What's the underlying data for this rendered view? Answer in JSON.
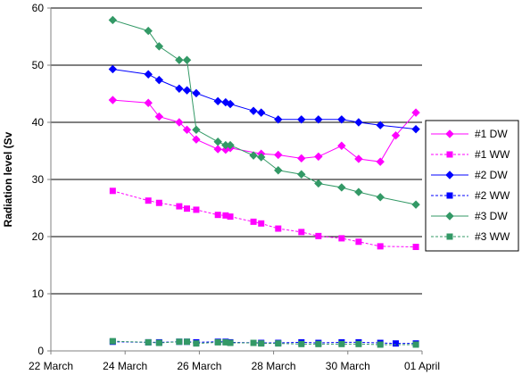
{
  "chart_data": {
    "type": "line",
    "title": "",
    "xlabel": "",
    "ylabel": "Radiation level (Sv",
    "ylim": [
      0,
      60
    ],
    "yticks": [
      0,
      10,
      20,
      30,
      40,
      50,
      60
    ],
    "xlim": [
      "2011-03-22",
      "2011-04-01"
    ],
    "xticks": [
      {
        "date": "2011-03-22",
        "label": "22 March"
      },
      {
        "date": "2011-03-24",
        "label": "24 March"
      },
      {
        "date": "2011-03-26",
        "label": "26 March"
      },
      {
        "date": "2011-03-28",
        "label": "28 March"
      },
      {
        "date": "2011-03-30",
        "label": "30 March"
      },
      {
        "date": "2011-04-01",
        "label": "01 April"
      }
    ],
    "grid": "horizontal",
    "legend_position": "right",
    "series": [
      {
        "name": "#1 DW",
        "color": "#ff00ff",
        "dash": false,
        "marker": "diamond",
        "points": [
          [
            "2011-03-23 16:00",
            43.9
          ],
          [
            "2011-03-24 15:00",
            43.4
          ],
          [
            "2011-03-24 22:00",
            41.0
          ],
          [
            "2011-03-25 11:00",
            40.0
          ],
          [
            "2011-03-25 16:00",
            38.7
          ],
          [
            "2011-03-25 22:00",
            37.0
          ],
          [
            "2011-03-26 12:00",
            35.3
          ],
          [
            "2011-03-26 17:00",
            35.2
          ],
          [
            "2011-03-26 20:00",
            35.5
          ],
          [
            "2011-03-27 16:00",
            34.5
          ],
          [
            "2011-03-28 03:00",
            34.3
          ],
          [
            "2011-03-28 18:00",
            33.7
          ],
          [
            "2011-03-29 05:00",
            34.0
          ],
          [
            "2011-03-29 20:00",
            35.9
          ],
          [
            "2011-03-30 07:00",
            33.6
          ],
          [
            "2011-03-30 21:00",
            33.1
          ],
          [
            "2011-03-31 07:00",
            37.7
          ],
          [
            "2011-03-31 20:00",
            41.7
          ]
        ]
      },
      {
        "name": "#1 WW",
        "color": "#ff00ff",
        "dash": true,
        "marker": "square",
        "points": [
          [
            "2011-03-23 16:00",
            28.0
          ],
          [
            "2011-03-24 15:00",
            26.3
          ],
          [
            "2011-03-24 22:00",
            25.9
          ],
          [
            "2011-03-25 11:00",
            25.3
          ],
          [
            "2011-03-25 16:00",
            24.9
          ],
          [
            "2011-03-25 22:00",
            24.7
          ],
          [
            "2011-03-26 12:00",
            23.8
          ],
          [
            "2011-03-26 17:00",
            23.7
          ],
          [
            "2011-03-26 20:00",
            23.5
          ],
          [
            "2011-03-27 11:00",
            22.6
          ],
          [
            "2011-03-27 16:00",
            22.3
          ],
          [
            "2011-03-28 03:00",
            21.4
          ],
          [
            "2011-03-28 18:00",
            20.8
          ],
          [
            "2011-03-29 05:00",
            20.1
          ],
          [
            "2011-03-29 20:00",
            19.7
          ],
          [
            "2011-03-30 07:00",
            19.1
          ],
          [
            "2011-03-30 21:00",
            18.3
          ],
          [
            "2011-03-31 20:00",
            18.2
          ]
        ]
      },
      {
        "name": "#2 DW",
        "color": "#0000ff",
        "dash": false,
        "marker": "diamond",
        "points": [
          [
            "2011-03-23 16:00",
            49.3
          ],
          [
            "2011-03-24 15:00",
            48.4
          ],
          [
            "2011-03-24 22:00",
            47.4
          ],
          [
            "2011-03-25 11:00",
            45.9
          ],
          [
            "2011-03-25 16:00",
            45.6
          ],
          [
            "2011-03-25 22:00",
            45.1
          ],
          [
            "2011-03-26 12:00",
            43.7
          ],
          [
            "2011-03-26 17:00",
            43.5
          ],
          [
            "2011-03-26 20:00",
            43.2
          ],
          [
            "2011-03-27 11:00",
            42.0
          ],
          [
            "2011-03-27 16:00",
            41.7
          ],
          [
            "2011-03-28 03:00",
            40.5
          ],
          [
            "2011-03-28 18:00",
            40.5
          ],
          [
            "2011-03-29 05:00",
            40.5
          ],
          [
            "2011-03-29 20:00",
            40.5
          ],
          [
            "2011-03-30 07:00",
            40.0
          ],
          [
            "2011-03-30 21:00",
            39.5
          ],
          [
            "2011-03-31 20:00",
            38.8
          ]
        ]
      },
      {
        "name": "#2 WW",
        "color": "#0000ff",
        "dash": true,
        "marker": "square",
        "points": [
          [
            "2011-03-23 16:00",
            1.6
          ],
          [
            "2011-03-24 15:00",
            1.5
          ],
          [
            "2011-03-24 22:00",
            1.5
          ],
          [
            "2011-03-25 11:00",
            1.6
          ],
          [
            "2011-03-25 16:00",
            1.6
          ],
          [
            "2011-03-25 22:00",
            1.5
          ],
          [
            "2011-03-26 12:00",
            1.6
          ],
          [
            "2011-03-26 17:00",
            1.6
          ],
          [
            "2011-03-26 20:00",
            1.5
          ],
          [
            "2011-03-27 16:00",
            1.4
          ],
          [
            "2011-03-28 03:00",
            1.4
          ],
          [
            "2011-03-28 18:00",
            1.5
          ],
          [
            "2011-03-29 05:00",
            1.4
          ],
          [
            "2011-03-29 20:00",
            1.5
          ],
          [
            "2011-03-30 07:00",
            1.5
          ],
          [
            "2011-03-30 21:00",
            1.4
          ],
          [
            "2011-03-31 07:00",
            1.3
          ],
          [
            "2011-03-31 20:00",
            1.3
          ]
        ]
      },
      {
        "name": "#3 DW",
        "color": "#339966",
        "dash": false,
        "marker": "diamond",
        "points": [
          [
            "2011-03-23 16:00",
            57.9
          ],
          [
            "2011-03-24 15:00",
            56.0
          ],
          [
            "2011-03-24 22:00",
            53.3
          ],
          [
            "2011-03-25 11:00",
            50.9
          ],
          [
            "2011-03-25 16:00",
            50.9
          ],
          [
            "2011-03-25 22:00",
            38.7
          ],
          [
            "2011-03-26 12:00",
            36.6
          ],
          [
            "2011-03-26 17:00",
            36.0
          ],
          [
            "2011-03-26 20:00",
            36.0
          ],
          [
            "2011-03-27 11:00",
            34.2
          ],
          [
            "2011-03-27 16:00",
            33.9
          ],
          [
            "2011-03-28 03:00",
            31.6
          ],
          [
            "2011-03-28 18:00",
            30.9
          ],
          [
            "2011-03-29 05:00",
            29.3
          ],
          [
            "2011-03-29 20:00",
            28.6
          ],
          [
            "2011-03-30 07:00",
            27.8
          ],
          [
            "2011-03-30 21:00",
            26.9
          ],
          [
            "2011-03-31 20:00",
            25.6
          ]
        ]
      },
      {
        "name": "#3 WW",
        "color": "#339966",
        "dash": true,
        "marker": "square",
        "points": [
          [
            "2011-03-23 16:00",
            1.7
          ],
          [
            "2011-03-24 15:00",
            1.5
          ],
          [
            "2011-03-24 22:00",
            1.4
          ],
          [
            "2011-03-25 11:00",
            1.6
          ],
          [
            "2011-03-25 16:00",
            1.6
          ],
          [
            "2011-03-25 22:00",
            1.3
          ],
          [
            "2011-03-26 12:00",
            1.5
          ],
          [
            "2011-03-26 17:00",
            1.5
          ],
          [
            "2011-03-26 20:00",
            1.4
          ],
          [
            "2011-03-27 11:00",
            1.4
          ],
          [
            "2011-03-27 16:00",
            1.3
          ],
          [
            "2011-03-28 03:00",
            1.3
          ],
          [
            "2011-03-28 18:00",
            1.2
          ],
          [
            "2011-03-29 05:00",
            1.2
          ],
          [
            "2011-03-29 20:00",
            1.2
          ],
          [
            "2011-03-30 07:00",
            1.2
          ],
          [
            "2011-03-30 21:00",
            1.1
          ],
          [
            "2011-03-31 20:00",
            1.1
          ]
        ]
      }
    ]
  }
}
